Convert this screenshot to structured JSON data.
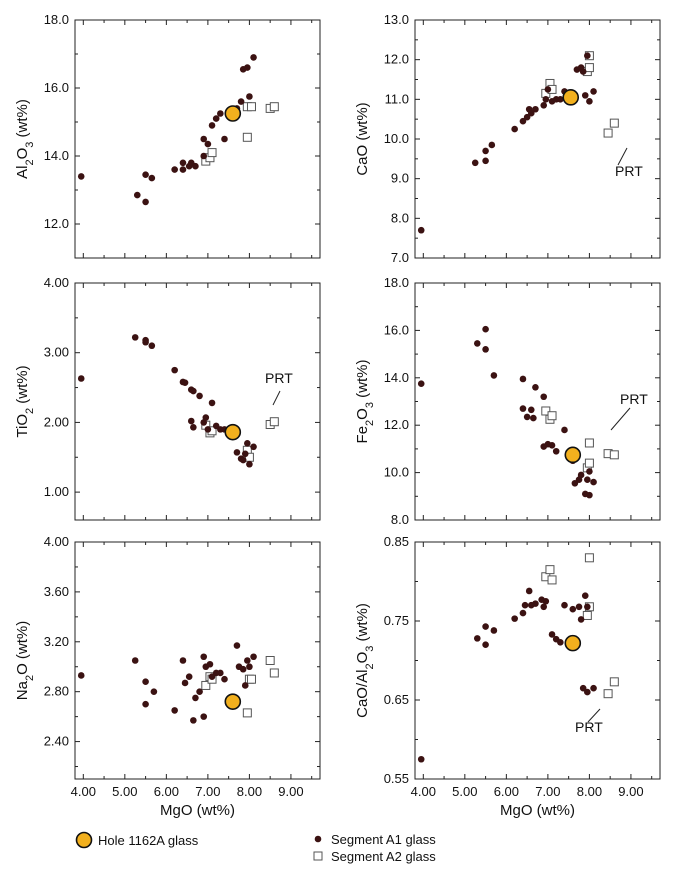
{
  "legend": {
    "hole": "Hole 1162A glass",
    "a1": "Segment A1 glass",
    "a2": "Segment A2 glass"
  },
  "colors": {
    "hole_fill": "#f2b01e",
    "a1": "#3b1212",
    "a2_stroke": "#555555"
  },
  "chart_data": [
    {
      "id": "al2o3",
      "type": "scatter",
      "ylabel": "Al2O3 (wt%)",
      "xlabel": "",
      "xlim": [
        3.8,
        9.7
      ],
      "ylim": [
        11.0,
        18.0
      ],
      "xticks": [],
      "yticks": [
        "12.0",
        "14.0",
        "16.0",
        "18.0"
      ],
      "annotation": "",
      "series": [
        {
          "key": "a1",
          "points": [
            [
              3.95,
              13.4
            ],
            [
              5.3,
              12.85
            ],
            [
              5.5,
              12.65
            ],
            [
              5.5,
              13.45
            ],
            [
              5.65,
              13.35
            ],
            [
              6.2,
              13.6
            ],
            [
              6.4,
              13.8
            ],
            [
              6.4,
              13.6
            ],
            [
              6.55,
              13.7
            ],
            [
              6.6,
              13.8
            ],
            [
              6.7,
              13.7
            ],
            [
              6.9,
              14.0
            ],
            [
              6.9,
              14.5
            ],
            [
              7.0,
              14.35
            ],
            [
              7.1,
              14.9
            ],
            [
              7.2,
              15.1
            ],
            [
              7.3,
              15.25
            ],
            [
              7.4,
              14.5
            ],
            [
              7.7,
              15.4
            ],
            [
              7.8,
              15.6
            ],
            [
              7.85,
              16.55
            ],
            [
              7.95,
              16.6
            ],
            [
              8.0,
              15.75
            ],
            [
              8.1,
              16.9
            ]
          ]
        },
        {
          "key": "a2",
          "points": [
            [
              6.95,
              13.85
            ],
            [
              7.05,
              13.95
            ],
            [
              7.1,
              14.1
            ],
            [
              7.95,
              14.55
            ],
            [
              7.95,
              15.45
            ],
            [
              8.05,
              15.45
            ],
            [
              8.5,
              15.4
            ],
            [
              8.6,
              15.45
            ]
          ]
        },
        {
          "key": "hole",
          "points": [
            [
              7.6,
              15.25
            ]
          ]
        }
      ]
    },
    {
      "id": "cao",
      "type": "scatter",
      "ylabel": "CaO (wt%)",
      "xlabel": "",
      "xlim": [
        3.8,
        9.7
      ],
      "ylim": [
        7.0,
        13.0
      ],
      "xticks": [],
      "yticks": [
        "7.0",
        "8.0",
        "9.0",
        "10.0",
        "11.0",
        "12.0",
        "13.0"
      ],
      "annotation": "PRT",
      "series": [
        {
          "key": "a1",
          "points": [
            [
              3.95,
              7.7
            ],
            [
              5.25,
              9.4
            ],
            [
              5.5,
              9.45
            ],
            [
              5.5,
              9.7
            ],
            [
              5.65,
              9.85
            ],
            [
              6.2,
              10.25
            ],
            [
              6.4,
              10.45
            ],
            [
              6.5,
              10.55
            ],
            [
              6.55,
              10.75
            ],
            [
              6.6,
              10.65
            ],
            [
              6.7,
              10.75
            ],
            [
              6.9,
              10.85
            ],
            [
              6.95,
              11.0
            ],
            [
              7.0,
              11.25
            ],
            [
              7.1,
              10.95
            ],
            [
              7.2,
              11.0
            ],
            [
              7.3,
              11.0
            ],
            [
              7.4,
              11.2
            ],
            [
              7.5,
              11.05
            ],
            [
              7.7,
              11.75
            ],
            [
              7.8,
              11.8
            ],
            [
              7.85,
              11.7
            ],
            [
              7.9,
              11.1
            ],
            [
              7.95,
              12.1
            ],
            [
              8.0,
              10.95
            ],
            [
              8.1,
              11.2
            ]
          ]
        },
        {
          "key": "a2",
          "points": [
            [
              6.95,
              11.15
            ],
            [
              7.05,
              11.4
            ],
            [
              7.1,
              11.25
            ],
            [
              7.95,
              11.7
            ],
            [
              8.0,
              11.8
            ],
            [
              8.0,
              12.1
            ],
            [
              8.45,
              10.15
            ],
            [
              8.6,
              10.4
            ]
          ]
        },
        {
          "key": "hole",
          "points": [
            [
              7.55,
              11.05
            ]
          ]
        }
      ]
    },
    {
      "id": "tio2",
      "type": "scatter",
      "ylabel": "TiO2 (wt%)",
      "xlabel": "",
      "xlim": [
        3.8,
        9.7
      ],
      "ylim": [
        0.6,
        4.0
      ],
      "xticks": [],
      "yticks": [
        "1.00",
        "2.00",
        "3.00",
        "4.00"
      ],
      "annotation": "PRT",
      "series": [
        {
          "key": "a1",
          "points": [
            [
              3.95,
              2.63
            ],
            [
              5.25,
              3.22
            ],
            [
              5.5,
              3.15
            ],
            [
              5.5,
              3.18
            ],
            [
              5.65,
              3.1
            ],
            [
              6.2,
              2.75
            ],
            [
              6.4,
              2.58
            ],
            [
              6.45,
              2.57
            ],
            [
              6.6,
              2.47
            ],
            [
              6.65,
              2.45
            ],
            [
              6.8,
              2.38
            ],
            [
              6.6,
              2.02
            ],
            [
              6.65,
              1.93
            ],
            [
              6.9,
              2.0
            ],
            [
              6.95,
              2.07
            ],
            [
              7.1,
              2.28
            ],
            [
              7.0,
              1.9
            ],
            [
              7.2,
              1.95
            ],
            [
              7.3,
              1.9
            ],
            [
              7.4,
              1.9
            ],
            [
              7.7,
              1.57
            ],
            [
              7.8,
              1.48
            ],
            [
              7.85,
              1.46
            ],
            [
              7.95,
              1.7
            ],
            [
              8.0,
              1.4
            ],
            [
              8.1,
              1.65
            ],
            [
              7.9,
              1.55
            ]
          ]
        },
        {
          "key": "a2",
          "points": [
            [
              6.95,
              1.96
            ],
            [
              7.05,
              1.85
            ],
            [
              7.1,
              1.88
            ],
            [
              7.95,
              1.6
            ],
            [
              8.0,
              1.5
            ],
            [
              8.5,
              1.97
            ],
            [
              8.6,
              2.01
            ]
          ]
        },
        {
          "key": "hole",
          "points": [
            [
              7.6,
              1.86
            ]
          ]
        }
      ]
    },
    {
      "id": "fe2o3",
      "type": "scatter",
      "ylabel": "Fe2O3 (wt%)",
      "xlabel": "",
      "xlim": [
        3.8,
        9.7
      ],
      "ylim": [
        8.0,
        18.0
      ],
      "xticks": [],
      "yticks": [
        "8.0",
        "10.0",
        "12.0",
        "14.0",
        "16.0",
        "18.0"
      ],
      "annotation": "PRT",
      "series": [
        {
          "key": "a1",
          "points": [
            [
              3.95,
              13.75
            ],
            [
              5.3,
              15.45
            ],
            [
              5.5,
              15.2
            ],
            [
              5.5,
              16.05
            ],
            [
              5.7,
              14.1
            ],
            [
              6.4,
              13.95
            ],
            [
              6.4,
              12.7
            ],
            [
              6.5,
              12.35
            ],
            [
              6.6,
              12.65
            ],
            [
              6.65,
              12.3
            ],
            [
              6.7,
              13.6
            ],
            [
              6.9,
              13.2
            ],
            [
              6.9,
              11.1
            ],
            [
              7.0,
              11.2
            ],
            [
              7.1,
              11.15
            ],
            [
              7.2,
              10.9
            ],
            [
              7.4,
              11.8
            ],
            [
              7.6,
              10.5
            ],
            [
              7.75,
              9.7
            ],
            [
              7.8,
              9.9
            ],
            [
              7.9,
              9.1
            ],
            [
              7.95,
              9.7
            ],
            [
              8.0,
              9.05
            ],
            [
              8.0,
              10.05
            ],
            [
              8.1,
              9.6
            ],
            [
              7.65,
              9.55
            ]
          ]
        },
        {
          "key": "a2",
          "points": [
            [
              6.95,
              12.6
            ],
            [
              7.05,
              12.25
            ],
            [
              7.1,
              12.4
            ],
            [
              7.95,
              10.2
            ],
            [
              8.0,
              10.4
            ],
            [
              8.0,
              11.25
            ],
            [
              8.45,
              10.8
            ],
            [
              8.6,
              10.75
            ]
          ]
        },
        {
          "key": "hole",
          "points": [
            [
              7.6,
              10.75
            ]
          ]
        }
      ]
    },
    {
      "id": "na2o",
      "type": "scatter",
      "ylabel": "Na2O (wt%)",
      "xlabel": "MgO (wt%)",
      "xlim": [
        3.8,
        9.7
      ],
      "ylim": [
        2.1,
        4.0
      ],
      "xticks": [
        "4.00",
        "5.00",
        "6.00",
        "7.00",
        "8.00",
        "9.00"
      ],
      "yticks": [
        "2.40",
        "2.80",
        "3.20",
        "3.60",
        "4.00"
      ],
      "annotation": "",
      "series": [
        {
          "key": "a1",
          "points": [
            [
              3.95,
              2.93
            ],
            [
              5.25,
              3.05
            ],
            [
              5.5,
              2.88
            ],
            [
              5.5,
              2.7
            ],
            [
              5.7,
              2.8
            ],
            [
              6.2,
              2.65
            ],
            [
              6.4,
              3.05
            ],
            [
              6.45,
              2.87
            ],
            [
              6.55,
              2.92
            ],
            [
              6.65,
              2.57
            ],
            [
              6.7,
              2.75
            ],
            [
              6.8,
              2.8
            ],
            [
              6.9,
              3.08
            ],
            [
              6.9,
              2.6
            ],
            [
              6.95,
              3.0
            ],
            [
              7.05,
              3.02
            ],
            [
              7.1,
              2.92
            ],
            [
              7.2,
              2.95
            ],
            [
              7.3,
              2.95
            ],
            [
              7.4,
              2.9
            ],
            [
              7.7,
              3.17
            ],
            [
              7.75,
              3.0
            ],
            [
              7.85,
              2.98
            ],
            [
              7.9,
              2.85
            ],
            [
              7.95,
              3.05
            ],
            [
              8.0,
              3.0
            ],
            [
              8.1,
              3.08
            ]
          ]
        },
        {
          "key": "a2",
          "points": [
            [
              6.95,
              2.85
            ],
            [
              7.05,
              2.92
            ],
            [
              7.1,
              2.9
            ],
            [
              7.95,
              2.63
            ],
            [
              8.0,
              2.9
            ],
            [
              8.05,
              2.9
            ],
            [
              8.5,
              3.05
            ],
            [
              8.6,
              2.95
            ]
          ]
        },
        {
          "key": "hole",
          "points": [
            [
              7.6,
              2.72
            ]
          ]
        }
      ]
    },
    {
      "id": "cao_al2o3",
      "type": "scatter",
      "ylabel": "CaO/Al2O3 (wt%)",
      "xlabel": "MgO (wt%)",
      "xlim": [
        3.8,
        9.7
      ],
      "ylim": [
        0.55,
        0.85
      ],
      "xticks": [
        "4.00",
        "5.00",
        "6.00",
        "7.00",
        "8.00",
        "9.00"
      ],
      "yticks": [
        "0.55",
        "0.65",
        "0.75",
        "0.85"
      ],
      "annotation": "PRT",
      "series": [
        {
          "key": "a1",
          "points": [
            [
              3.95,
              0.575
            ],
            [
              5.3,
              0.728
            ],
            [
              5.5,
              0.72
            ],
            [
              5.5,
              0.743
            ],
            [
              5.7,
              0.738
            ],
            [
              6.2,
              0.753
            ],
            [
              6.4,
              0.76
            ],
            [
              6.45,
              0.77
            ],
            [
              6.55,
              0.788
            ],
            [
              6.6,
              0.77
            ],
            [
              6.7,
              0.772
            ],
            [
              6.85,
              0.777
            ],
            [
              6.9,
              0.768
            ],
            [
              6.95,
              0.775
            ],
            [
              7.1,
              0.733
            ],
            [
              7.2,
              0.727
            ],
            [
              7.3,
              0.723
            ],
            [
              7.4,
              0.77
            ],
            [
              7.6,
              0.765
            ],
            [
              7.75,
              0.768
            ],
            [
              7.8,
              0.752
            ],
            [
              7.9,
              0.782
            ],
            [
              7.95,
              0.768
            ],
            [
              7.85,
              0.665
            ],
            [
              7.95,
              0.66
            ],
            [
              8.1,
              0.665
            ]
          ]
        },
        {
          "key": "a2",
          "points": [
            [
              6.95,
              0.806
            ],
            [
              7.05,
              0.815
            ],
            [
              7.1,
              0.802
            ],
            [
              7.95,
              0.757
            ],
            [
              8.0,
              0.768
            ],
            [
              8.0,
              0.83
            ],
            [
              8.45,
              0.658
            ],
            [
              8.6,
              0.673
            ]
          ]
        },
        {
          "key": "hole",
          "points": [
            [
              7.6,
              0.722
            ]
          ]
        }
      ]
    }
  ]
}
